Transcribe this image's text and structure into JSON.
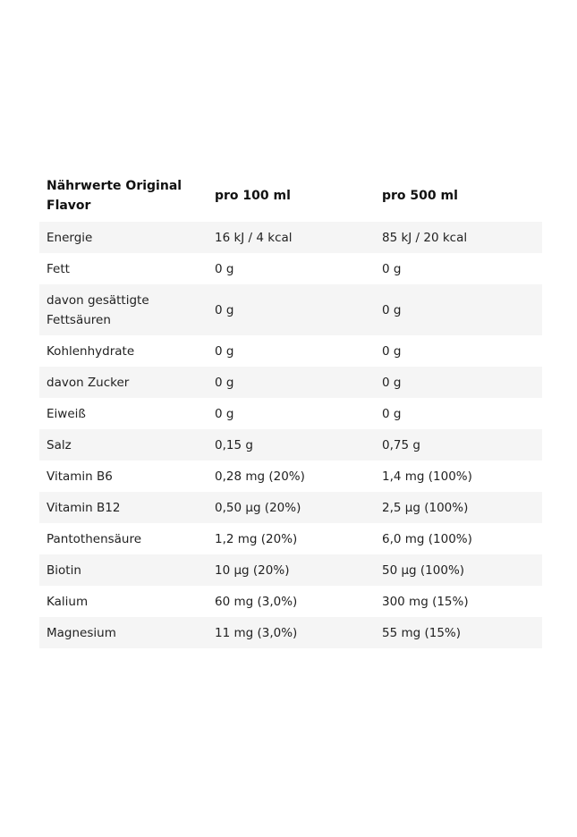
{
  "table": {
    "header": [
      "Nährwerte Original Flavor",
      "pro 100 ml",
      "pro 500 ml"
    ],
    "rows": [
      [
        "Energie",
        "16 kJ / 4 kcal",
        "85 kJ / 20 kcal"
      ],
      [
        "Fett",
        "0 g",
        "0 g"
      ],
      [
        "davon gesättigte Fettsäuren",
        "0 g",
        "0 g"
      ],
      [
        "Kohlenhydrate",
        "0 g",
        "0 g"
      ],
      [
        "davon Zucker",
        "0 g",
        "0 g"
      ],
      [
        "Eiweiß",
        "0 g",
        "0 g"
      ],
      [
        "Salz",
        "0,15 g",
        "0,75 g"
      ],
      [
        "Vitamin B6",
        "0,28 mg (20%)",
        "1,4 mg (100%)"
      ],
      [
        "Vitamin B12",
        "0,50 µg (20%)",
        "2,5 µg (100%)"
      ],
      [
        "Pantothensäure",
        "1,2 mg (20%)",
        "6,0 mg (100%)"
      ],
      [
        "Biotin",
        "10 µg (20%)",
        "50 µg (100%)"
      ],
      [
        "Kalium",
        "60 mg (3,0%)",
        "300 mg (15%)"
      ],
      [
        "Magnesium",
        "11 mg (3,0%)",
        "55 mg (15%)"
      ]
    ]
  }
}
